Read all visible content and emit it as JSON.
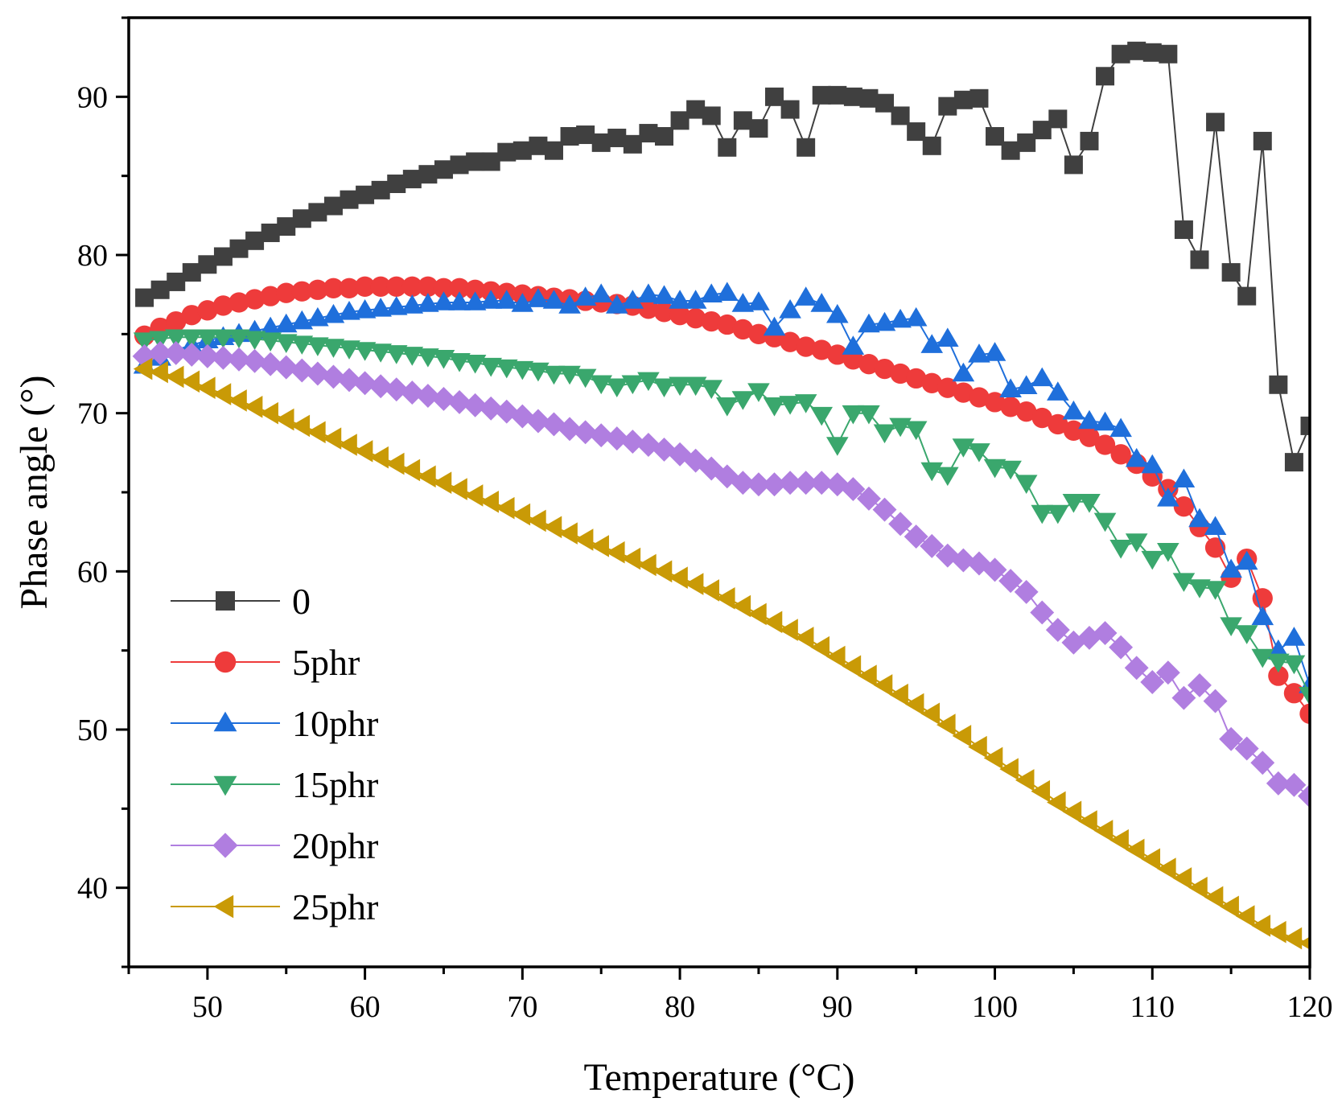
{
  "chart_data": {
    "type": "line",
    "title": "",
    "xlabel": "Temperature (°C)",
    "ylabel": "Phase angle (°)",
    "xlim": [
      45,
      120
    ],
    "ylim": [
      35,
      95
    ],
    "xticks": [
      50,
      60,
      70,
      80,
      90,
      100,
      110,
      120
    ],
    "xtick_labels": [
      "50",
      "60",
      "70",
      "80",
      "90",
      "100",
      "110",
      "120"
    ],
    "yticks": [
      40,
      50,
      60,
      70,
      80,
      90
    ],
    "ytick_labels": [
      "40",
      "50",
      "60",
      "70",
      "80",
      "90"
    ],
    "legend_position": "bottom-left",
    "series": [
      {
        "name": "0",
        "color": "#404040",
        "marker": "square",
        "x": [
          46,
          47,
          48,
          49,
          50,
          51,
          52,
          53,
          54,
          55,
          56,
          57,
          58,
          59,
          60,
          61,
          62,
          63,
          64,
          65,
          66,
          67,
          68,
          69,
          70,
          71,
          72,
          73,
          74,
          75,
          76,
          77,
          78,
          79,
          80,
          81,
          82,
          83,
          84,
          85,
          86,
          87,
          88,
          89,
          90,
          91,
          92,
          93,
          94,
          95,
          96,
          97,
          98,
          99,
          100,
          101,
          102,
          103,
          104,
          105,
          106,
          107,
          108,
          109,
          110,
          111,
          112,
          113,
          114,
          115,
          116,
          117,
          118,
          119,
          120
        ],
        "y": [
          77.3,
          77.8,
          78.3,
          78.9,
          79.4,
          79.9,
          80.4,
          80.9,
          81.4,
          81.8,
          82.3,
          82.7,
          83.1,
          83.5,
          83.8,
          84.1,
          84.5,
          84.8,
          85.1,
          85.4,
          85.7,
          85.9,
          85.9,
          86.5,
          86.6,
          86.9,
          86.6,
          87.5,
          87.6,
          87.1,
          87.4,
          87.0,
          87.7,
          87.5,
          88.5,
          89.2,
          88.8,
          86.8,
          88.5,
          88.0,
          90.0,
          89.2,
          86.8,
          90.1,
          90.1,
          90.0,
          89.9,
          89.6,
          88.8,
          87.8,
          86.9,
          89.4,
          89.8,
          89.9,
          87.5,
          86.6,
          87.1,
          87.9,
          88.6,
          85.7,
          87.2,
          91.3,
          92.7,
          92.9,
          92.8,
          92.7,
          81.6,
          79.7,
          88.4,
          78.9,
          77.4,
          87.2,
          71.8,
          66.9,
          69.2
        ]
      },
      {
        "name": "5phr",
        "color": "#ee3b3b",
        "marker": "circle",
        "x": [
          46,
          47,
          48,
          49,
          50,
          51,
          52,
          53,
          54,
          55,
          56,
          57,
          58,
          59,
          60,
          61,
          62,
          63,
          64,
          65,
          66,
          67,
          68,
          69,
          70,
          71,
          72,
          73,
          74,
          75,
          76,
          77,
          78,
          79,
          80,
          81,
          82,
          83,
          84,
          85,
          86,
          87,
          88,
          89,
          90,
          91,
          92,
          93,
          94,
          95,
          96,
          97,
          98,
          99,
          100,
          101,
          102,
          103,
          104,
          105,
          106,
          107,
          108,
          109,
          110,
          111,
          112,
          113,
          114,
          115,
          116,
          117,
          118,
          119,
          120
        ],
        "y": [
          74.9,
          75.4,
          75.8,
          76.2,
          76.5,
          76.8,
          77.0,
          77.2,
          77.4,
          77.6,
          77.7,
          77.8,
          77.9,
          77.9,
          78.0,
          78.0,
          78.0,
          78.0,
          78.0,
          77.9,
          77.9,
          77.8,
          77.7,
          77.6,
          77.5,
          77.4,
          77.3,
          77.2,
          77.1,
          77.0,
          76.9,
          76.8,
          76.6,
          76.4,
          76.2,
          76.0,
          75.8,
          75.6,
          75.3,
          75.0,
          74.8,
          74.5,
          74.2,
          74.0,
          73.7,
          73.4,
          73.1,
          72.8,
          72.5,
          72.2,
          71.9,
          71.6,
          71.3,
          71.0,
          70.7,
          70.4,
          70.1,
          69.7,
          69.3,
          68.9,
          68.5,
          68.0,
          67.4,
          66.8,
          66.0,
          65.2,
          64.1,
          62.8,
          61.5,
          59.6,
          60.8,
          58.3,
          53.4,
          52.3,
          51.0
        ]
      },
      {
        "name": "10phr",
        "color": "#1f6fdb",
        "marker": "triangle-up",
        "x": [
          46,
          47,
          48,
          49,
          50,
          51,
          52,
          53,
          54,
          55,
          56,
          57,
          58,
          59,
          60,
          61,
          62,
          63,
          64,
          65,
          66,
          67,
          68,
          69,
          70,
          71,
          72,
          73,
          74,
          75,
          76,
          77,
          78,
          79,
          80,
          81,
          82,
          83,
          84,
          85,
          86,
          87,
          88,
          89,
          90,
          91,
          92,
          93,
          94,
          95,
          96,
          97,
          98,
          99,
          100,
          101,
          102,
          103,
          104,
          105,
          106,
          107,
          108,
          109,
          110,
          111,
          112,
          113,
          114,
          115,
          116,
          117,
          118,
          119,
          120
        ],
        "y": [
          73.0,
          73.5,
          74.0,
          74.3,
          74.6,
          74.8,
          75.0,
          75.2,
          75.4,
          75.6,
          75.8,
          76.0,
          76.2,
          76.4,
          76.5,
          76.6,
          76.7,
          76.8,
          76.9,
          77.0,
          77.0,
          77.0,
          77.1,
          77.1,
          76.9,
          77.2,
          77.1,
          76.8,
          77.3,
          77.5,
          76.8,
          77.1,
          77.5,
          77.4,
          77.1,
          77.1,
          77.5,
          77.6,
          76.9,
          77.0,
          75.4,
          76.5,
          77.3,
          76.9,
          76.2,
          74.2,
          75.6,
          75.7,
          75.9,
          76.0,
          74.3,
          74.7,
          72.5,
          73.7,
          73.8,
          71.5,
          71.7,
          72.2,
          71.3,
          70.1,
          69.5,
          69.4,
          69.0,
          67.1,
          66.7,
          64.6,
          65.8,
          63.3,
          62.8,
          60.1,
          60.6,
          57.1,
          55.0,
          55.8,
          52.8
        ]
      },
      {
        "name": "15phr",
        "color": "#3aa76d",
        "marker": "triangle-down",
        "x": [
          46,
          47,
          48,
          49,
          50,
          51,
          52,
          53,
          54,
          55,
          56,
          57,
          58,
          59,
          60,
          61,
          62,
          63,
          64,
          65,
          66,
          67,
          68,
          69,
          70,
          71,
          72,
          73,
          74,
          75,
          76,
          77,
          78,
          79,
          80,
          81,
          82,
          83,
          84,
          85,
          86,
          87,
          88,
          89,
          90,
          91,
          92,
          93,
          94,
          95,
          96,
          97,
          98,
          99,
          100,
          101,
          102,
          103,
          104,
          105,
          106,
          107,
          108,
          109,
          110,
          111,
          112,
          113,
          114,
          115,
          116,
          117,
          118,
          119,
          120
        ],
        "y": [
          74.6,
          74.7,
          74.8,
          74.8,
          74.8,
          74.8,
          74.8,
          74.7,
          74.6,
          74.5,
          74.4,
          74.3,
          74.2,
          74.1,
          74.0,
          73.9,
          73.8,
          73.7,
          73.6,
          73.5,
          73.3,
          73.2,
          73.0,
          72.9,
          72.8,
          72.7,
          72.5,
          72.5,
          72.3,
          71.9,
          71.7,
          71.9,
          72.1,
          71.7,
          71.8,
          71.8,
          71.6,
          70.5,
          70.9,
          71.4,
          70.5,
          70.6,
          70.7,
          69.9,
          68.0,
          70.0,
          70.0,
          68.8,
          69.2,
          69.0,
          66.4,
          66.1,
          67.9,
          67.6,
          66.6,
          66.5,
          65.6,
          63.7,
          63.7,
          64.4,
          64.4,
          63.2,
          61.5,
          61.9,
          60.8,
          61.3,
          59.4,
          59.0,
          58.9,
          56.6,
          56.1,
          54.6,
          54.3,
          54.2,
          52.2
        ]
      },
      {
        "name": "20phr",
        "color": "#b07ee0",
        "marker": "diamond",
        "x": [
          46,
          47,
          48,
          49,
          50,
          51,
          52,
          53,
          54,
          55,
          56,
          57,
          58,
          59,
          60,
          61,
          62,
          63,
          64,
          65,
          66,
          67,
          68,
          69,
          70,
          71,
          72,
          73,
          74,
          75,
          76,
          77,
          78,
          79,
          80,
          81,
          82,
          83,
          84,
          85,
          86,
          87,
          88,
          89,
          90,
          91,
          92,
          93,
          94,
          95,
          96,
          97,
          98,
          99,
          100,
          101,
          102,
          103,
          104,
          105,
          106,
          107,
          108,
          109,
          110,
          111,
          112,
          113,
          114,
          115,
          116,
          117,
          118,
          119,
          120
        ],
        "y": [
          73.6,
          73.8,
          73.8,
          73.7,
          73.6,
          73.5,
          73.4,
          73.3,
          73.1,
          72.9,
          72.7,
          72.5,
          72.3,
          72.1,
          71.9,
          71.7,
          71.5,
          71.3,
          71.1,
          70.9,
          70.7,
          70.5,
          70.3,
          70.1,
          69.8,
          69.5,
          69.3,
          69.0,
          68.8,
          68.6,
          68.4,
          68.2,
          68.0,
          67.7,
          67.4,
          67.0,
          66.5,
          66.0,
          65.6,
          65.5,
          65.5,
          65.6,
          65.6,
          65.6,
          65.5,
          65.2,
          64.6,
          63.9,
          63.0,
          62.2,
          61.6,
          61.0,
          60.7,
          60.5,
          60.1,
          59.4,
          58.7,
          57.4,
          56.3,
          55.5,
          55.8,
          56.1,
          55.2,
          53.9,
          53.0,
          53.6,
          52.0,
          52.8,
          51.8,
          49.4,
          48.8,
          47.9,
          46.6,
          46.5,
          45.8
        ]
      },
      {
        "name": "25phr",
        "color": "#c99a06",
        "marker": "triangle-left",
        "x": [
          46,
          47,
          48,
          49,
          50,
          51,
          52,
          53,
          54,
          55,
          56,
          57,
          58,
          59,
          60,
          61,
          62,
          63,
          64,
          65,
          66,
          67,
          68,
          69,
          70,
          71,
          72,
          73,
          74,
          75,
          76,
          77,
          78,
          79,
          80,
          81,
          82,
          83,
          84,
          85,
          86,
          87,
          88,
          89,
          90,
          91,
          92,
          93,
          94,
          95,
          96,
          97,
          98,
          99,
          100,
          101,
          102,
          103,
          104,
          105,
          106,
          107,
          108,
          109,
          110,
          111,
          112,
          113,
          114,
          115,
          116,
          117,
          118,
          119,
          120
        ],
        "y": [
          72.8,
          72.6,
          72.3,
          72.0,
          71.6,
          71.2,
          70.8,
          70.4,
          70.0,
          69.6,
          69.2,
          68.8,
          68.4,
          68.0,
          67.6,
          67.2,
          66.8,
          66.4,
          66.0,
          65.6,
          65.2,
          64.8,
          64.4,
          64.0,
          63.6,
          63.2,
          62.8,
          62.4,
          62.0,
          61.6,
          61.2,
          60.8,
          60.4,
          60.0,
          59.6,
          59.2,
          58.8,
          58.3,
          57.8,
          57.3,
          56.8,
          56.3,
          55.8,
          55.2,
          54.6,
          54.0,
          53.4,
          52.8,
          52.2,
          51.6,
          51.0,
          50.3,
          49.6,
          48.9,
          48.2,
          47.5,
          46.8,
          46.1,
          45.4,
          44.8,
          44.2,
          43.6,
          43.0,
          42.4,
          41.8,
          41.2,
          40.6,
          40.0,
          39.4,
          38.8,
          38.2,
          37.6,
          37.2,
          36.8,
          36.5
        ]
      }
    ]
  }
}
